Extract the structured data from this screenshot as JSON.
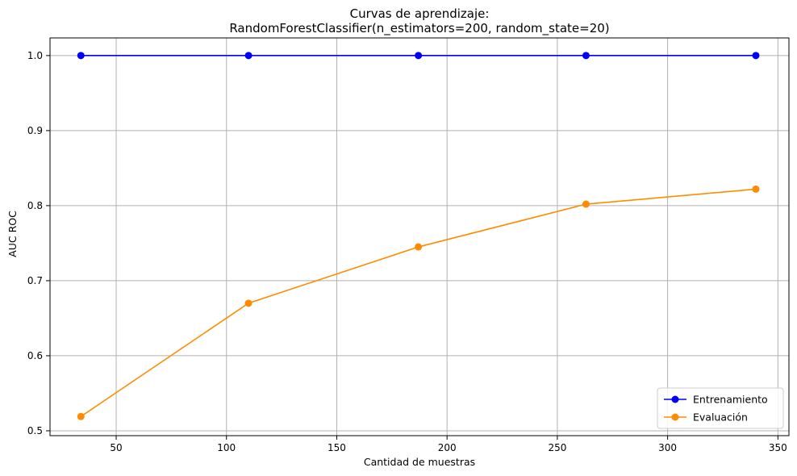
{
  "chart_data": {
    "type": "line",
    "title": "Curvas de aprendizaje:",
    "subtitle": "RandomForestClassifier(n_estimators=200, random_state=20)",
    "xlabel": "Cantidad de muestras",
    "ylabel": "AUC ROC",
    "xlim": [
      20,
      355
    ],
    "ylim": [
      0.4935,
      1.0235
    ],
    "xticks": [
      50,
      100,
      150,
      200,
      250,
      300,
      350
    ],
    "yticks": [
      0.5,
      0.6,
      0.7,
      0.8,
      0.9,
      1.0
    ],
    "grid": true,
    "legend_position": "lower-right",
    "x": [
      34,
      110,
      187,
      263,
      340
    ],
    "series": [
      {
        "name": "Entrenamiento",
        "color": "#0000ff",
        "values": [
          1.0,
          1.0,
          1.0,
          1.0,
          1.0
        ]
      },
      {
        "name": "Evaluación",
        "color": "#ff8c00",
        "values": [
          0.519,
          0.67,
          0.745,
          0.802,
          0.822
        ]
      }
    ]
  }
}
